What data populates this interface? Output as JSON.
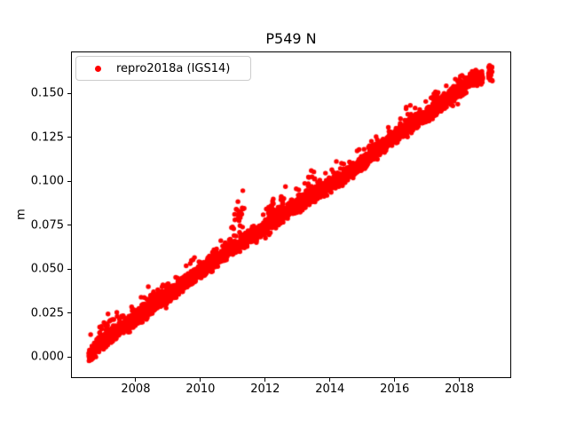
{
  "title": "P549 N",
  "ylabel": "m",
  "legend": {
    "label": "repro2018a (IGS14)",
    "marker_color": "#ff0000"
  },
  "axes": {
    "xlim": [
      2006.0,
      2019.6
    ],
    "ylim": [
      -0.012,
      0.174
    ],
    "xticks": [
      2008,
      2010,
      2012,
      2014,
      2016,
      2018
    ],
    "xtick_labels": [
      "2008",
      "2010",
      "2012",
      "2014",
      "2016",
      "2018"
    ],
    "yticks": [
      0.0,
      0.025,
      0.05,
      0.075,
      0.1,
      0.125,
      0.15
    ],
    "ytick_labels": [
      "0.000",
      "0.025",
      "0.050",
      "0.075",
      "0.100",
      "0.125",
      "0.150"
    ],
    "grid": false,
    "frame_color": "#000000",
    "legend_position": "upper left"
  },
  "chart_data": {
    "type": "scatter",
    "title": "P549 N",
    "xlabel": "",
    "ylabel": "m",
    "series": [
      {
        "name": "repro2018a (IGS14)",
        "color": "#ff0000",
        "marker": "dot",
        "x_start": 2006.55,
        "x_end": 2018.72,
        "points_per_year": 365,
        "trend_anchors": [
          [
            2006.55,
            0.0
          ],
          [
            2006.8,
            0.006
          ],
          [
            2007.3,
            0.013
          ],
          [
            2008.0,
            0.022
          ],
          [
            2009.0,
            0.035
          ],
          [
            2010.0,
            0.049
          ],
          [
            2011.0,
            0.062
          ],
          [
            2012.0,
            0.074
          ],
          [
            2013.0,
            0.087
          ],
          [
            2014.0,
            0.098
          ],
          [
            2015.0,
            0.11
          ],
          [
            2016.0,
            0.126
          ],
          [
            2017.0,
            0.138
          ],
          [
            2018.0,
            0.152
          ],
          [
            2018.4,
            0.158
          ],
          [
            2018.72,
            0.159
          ]
        ],
        "noise_sigma": 0.002,
        "outlier_rate": 0.025,
        "outlier_max_offset": 0.009,
        "outlier_clusters": [
          [
            2006.8,
            2007.35,
            0.012,
            0.12
          ],
          [
            2008.35,
            2008.85,
            0.007,
            0.1
          ],
          [
            2010.9,
            2011.35,
            0.022,
            0.14
          ],
          [
            2011.95,
            2012.65,
            0.014,
            0.13
          ],
          [
            2013.2,
            2013.55,
            0.01,
            0.08
          ],
          [
            2015.05,
            2015.4,
            0.008,
            0.06
          ],
          [
            2016.3,
            2016.65,
            0.009,
            0.07
          ],
          [
            2017.05,
            2017.4,
            0.008,
            0.06
          ]
        ],
        "data_gap": [
          2018.72,
          2018.9
        ],
        "final_cluster": {
          "x_start": 2018.9,
          "x_end": 2019.02,
          "y_min": 0.157,
          "y_max": 0.166,
          "n_points": 34
        }
      }
    ]
  }
}
